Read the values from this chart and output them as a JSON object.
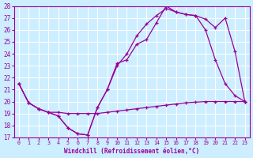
{
  "xlabel": "Windchill (Refroidissement éolien,°C)",
  "background_color": "#cceeff",
  "grid_color": "#ffffff",
  "line_color": "#990099",
  "xlim": [
    -0.5,
    23.5
  ],
  "ylim": [
    17,
    28
  ],
  "yticks": [
    17,
    18,
    19,
    20,
    21,
    22,
    23,
    24,
    25,
    26,
    27,
    28
  ],
  "xticks": [
    0,
    1,
    2,
    3,
    4,
    5,
    6,
    7,
    8,
    9,
    10,
    11,
    12,
    13,
    14,
    15,
    16,
    17,
    18,
    19,
    20,
    21,
    22,
    23
  ],
  "line1_x": [
    0,
    1,
    2,
    3,
    4,
    5,
    6,
    7,
    8,
    9,
    10,
    11,
    12,
    13,
    14,
    15,
    16,
    17,
    18,
    19,
    20,
    21,
    22,
    23
  ],
  "line1_y": [
    21.5,
    19.9,
    19.4,
    19.1,
    19.1,
    19.0,
    19.0,
    19.0,
    19.0,
    19.1,
    19.2,
    19.3,
    19.4,
    19.5,
    19.6,
    19.7,
    19.8,
    19.9,
    19.95,
    20.0,
    20.0,
    20.0,
    20.0,
    20.0
  ],
  "line2_x": [
    0,
    1,
    2,
    3,
    4,
    5,
    6,
    7,
    8,
    9,
    10,
    11,
    12,
    13,
    14,
    15,
    16,
    17,
    18,
    19,
    20,
    21,
    22,
    23
  ],
  "line2_y": [
    21.5,
    19.9,
    19.4,
    19.1,
    18.8,
    17.8,
    17.3,
    17.2,
    19.5,
    21.0,
    23.0,
    24.0,
    25.5,
    26.5,
    27.2,
    27.8,
    27.5,
    27.3,
    27.2,
    26.0,
    23.5,
    21.5,
    20.5,
    20.0
  ],
  "line3_x": [
    0,
    1,
    2,
    3,
    4,
    5,
    6,
    7,
    8,
    9,
    10,
    11,
    12,
    13,
    14,
    15,
    16,
    17,
    18,
    19,
    20,
    21,
    22,
    23
  ],
  "line3_y": [
    21.5,
    19.9,
    19.4,
    19.1,
    18.8,
    17.8,
    17.3,
    17.2,
    19.5,
    21.0,
    23.2,
    23.5,
    24.8,
    25.2,
    26.6,
    28.0,
    27.5,
    27.3,
    27.2,
    26.9,
    26.2,
    27.0,
    24.2,
    20.0
  ]
}
